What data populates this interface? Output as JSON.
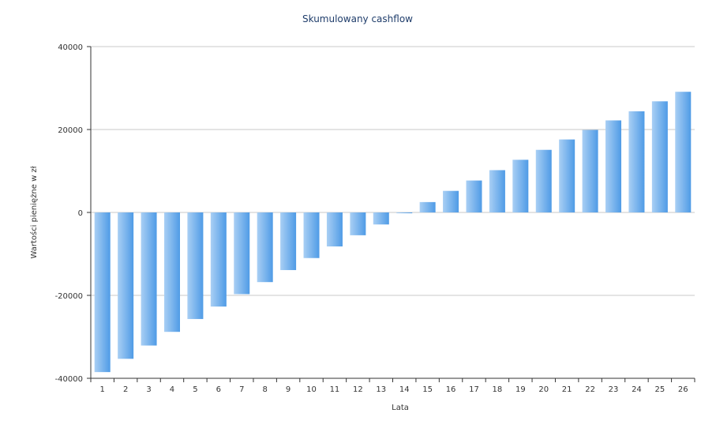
{
  "chart_data": {
    "type": "bar",
    "title": "Skumulowany cashflow",
    "xlabel": "Lata",
    "ylabel": "Wartości pieniężne w zł",
    "ylim": [
      -40000,
      40000
    ],
    "yticks": [
      40000,
      20000,
      0,
      -20000,
      -40000
    ],
    "ytick_labels": [
      "40000",
      "20000",
      "0",
      "-20000",
      "-40000"
    ],
    "grid": true,
    "categories": [
      "1",
      "2",
      "3",
      "4",
      "5",
      "6",
      "7",
      "8",
      "9",
      "10",
      "11",
      "12",
      "13",
      "14",
      "15",
      "16",
      "17",
      "18",
      "19",
      "20",
      "21",
      "22",
      "23",
      "24",
      "25",
      "26"
    ],
    "values": [
      -38500,
      -35300,
      -32100,
      -28800,
      -25700,
      -22700,
      -19700,
      -16800,
      -13900,
      -11000,
      -8200,
      -5500,
      -2900,
      -200,
      2500,
      5200,
      7700,
      10200,
      12700,
      15100,
      17600,
      19900,
      22200,
      24400,
      26800,
      29100
    ],
    "colors": {
      "bar_light": "#a9cff4",
      "bar_dark": "#4f9be6",
      "grid": "#c8c8c8",
      "axis": "#333333",
      "title": "#1f3d6b"
    }
  }
}
